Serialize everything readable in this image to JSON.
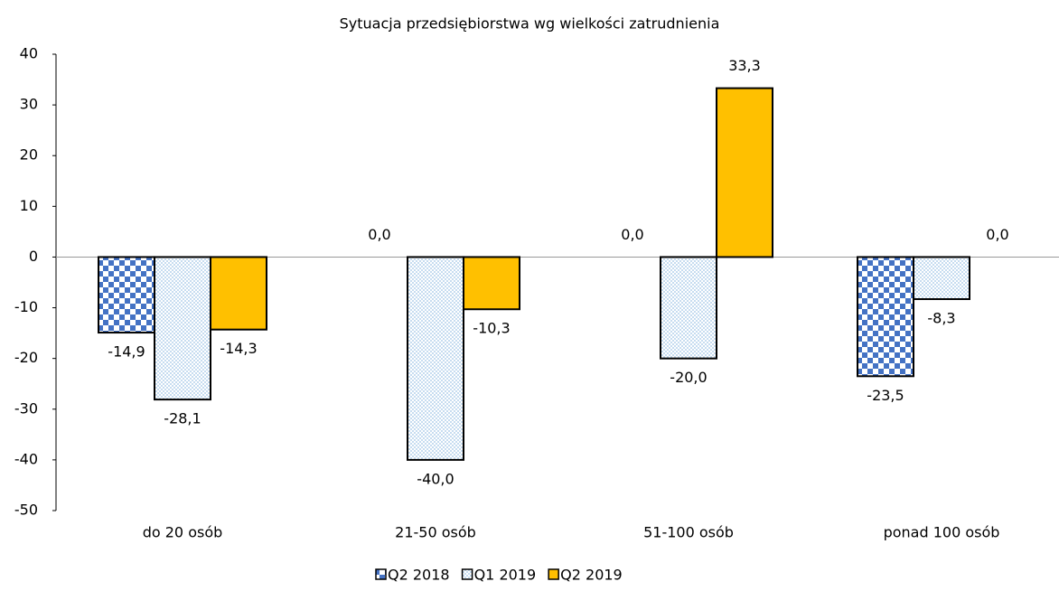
{
  "chart_data": {
    "type": "bar",
    "title": "Sytuacja przedsiębiorstwa wg wielkości zatrudnienia",
    "categories": [
      "do 20 osób",
      "21-50 osób",
      "51-100 osób",
      "ponad 100 osób"
    ],
    "series": [
      {
        "name": "Q2 2018",
        "color": "#4472c4",
        "pattern": "checker",
        "values": [
          -14.9,
          0,
          0,
          -23.5
        ],
        "value_labels": [
          "-14,9",
          "0,0",
          "0,0",
          "-23,5"
        ]
      },
      {
        "name": "Q1 2019",
        "color": "#9dc3e6",
        "pattern": "dots",
        "values": [
          -28.1,
          -40,
          -20,
          -8.3
        ],
        "value_labels": [
          "-28,1",
          "-40,0",
          "-20,0",
          "-8,3"
        ]
      },
      {
        "name": "Q2 2019",
        "color": "#ffc000",
        "pattern": "solid",
        "values": [
          -14.3,
          -10.3,
          33.3,
          0
        ],
        "value_labels": [
          "-14,3",
          "-10,3",
          "33,3",
          "0,0"
        ]
      }
    ],
    "ylim": [
      -50,
      40
    ],
    "yticks": [
      -50,
      -40,
      -30,
      -20,
      -10,
      0,
      10,
      20,
      30,
      40
    ],
    "grid": false,
    "legend": "bottom"
  }
}
